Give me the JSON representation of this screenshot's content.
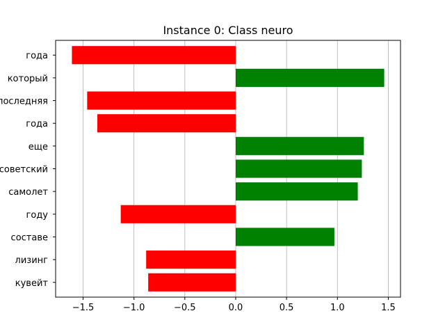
{
  "chart_data": {
    "type": "bar",
    "orientation": "horizontal",
    "title": "Instance 0: Class neuro",
    "xlabel": "",
    "ylabel": "",
    "categories": [
      "года",
      "который",
      "последняя",
      "года",
      "еще",
      "советский",
      "самолет",
      "году",
      "составе",
      "лизинг",
      "кувейт"
    ],
    "values": [
      -1.61,
      1.46,
      -1.46,
      -1.36,
      1.26,
      1.24,
      1.2,
      -1.13,
      0.97,
      -0.88,
      -0.86
    ],
    "xlim": [
      -1.77,
      1.62
    ],
    "xticks": [
      -1.5,
      -1.0,
      -0.5,
      0.0,
      0.5,
      1.0,
      1.5
    ],
    "xtick_labels": [
      "−1.5",
      "−1.0",
      "−0.5",
      "0.0",
      "0.5",
      "1.0",
      "1.5"
    ],
    "grid": "vertical",
    "colors": {
      "positive": "#008000",
      "negative": "#ff0000",
      "grid": "#b0b0b0",
      "axis": "#000000"
    }
  }
}
